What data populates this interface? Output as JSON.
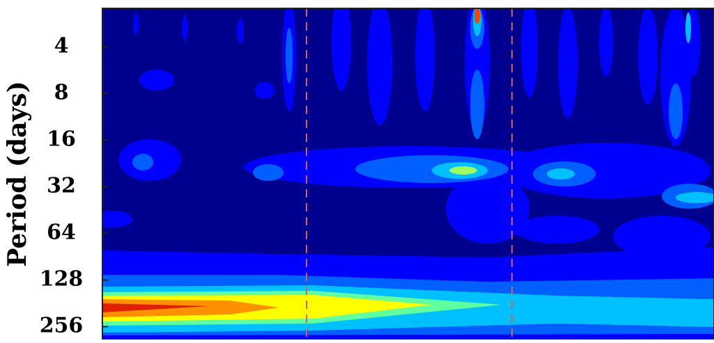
{
  "chart_data": {
    "type": "contour",
    "y_label": "Period (days)",
    "y_log_base": 2,
    "ylim": [
      2.25,
      310
    ],
    "yticks": [
      4,
      8,
      16,
      32,
      64,
      128,
      256
    ]
  }
}
